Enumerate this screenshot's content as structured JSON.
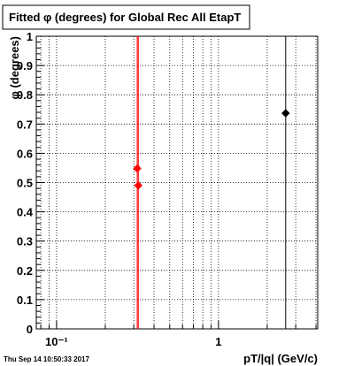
{
  "footer": {
    "timestamp": "Thu Sep 14 10:50:33 2017"
  },
  "chart_data": {
    "type": "scatter",
    "title": "Fitted φ (degrees) for Global Rec All EtapT",
    "xlabel": "pT/|q| (GeV/c)",
    "ylabel": "φ (degrees)",
    "x_scale": "log",
    "xlim": [
      0.075,
      4.1
    ],
    "ylim": [
      0,
      1
    ],
    "grid": true,
    "x_tick_labels": [
      {
        "value": 0.1,
        "label": "10⁻¹"
      },
      {
        "value": 1,
        "label": "1"
      }
    ],
    "y_tick_labels": [
      {
        "value": 0,
        "label": "0"
      },
      {
        "value": 0.1,
        "label": "0.1"
      },
      {
        "value": 0.2,
        "label": "0.2"
      },
      {
        "value": 0.3,
        "label": "0.3"
      },
      {
        "value": 0.4,
        "label": "0.4"
      },
      {
        "value": 0.5,
        "label": "0.5"
      },
      {
        "value": 0.6,
        "label": "0.6"
      },
      {
        "value": 0.7,
        "label": "0.7"
      },
      {
        "value": 0.8,
        "label": "0.8"
      },
      {
        "value": 0.9,
        "label": "0.9"
      },
      {
        "value": 1,
        "label": "1"
      }
    ],
    "series": [
      {
        "color": "#ff0000",
        "marker": "diamond",
        "points": [
          {
            "x": 0.315,
            "y": 0.548,
            "ylow": 0,
            "yhigh": 1
          },
          {
            "x": 0.32,
            "y": 0.49,
            "ylow": 0,
            "yhigh": 1
          }
        ]
      },
      {
        "color": "#000000",
        "marker": "diamond",
        "points": [
          {
            "x": 2.6,
            "y": 0.737,
            "ylow": 0,
            "yhigh": 1
          }
        ]
      }
    ]
  }
}
